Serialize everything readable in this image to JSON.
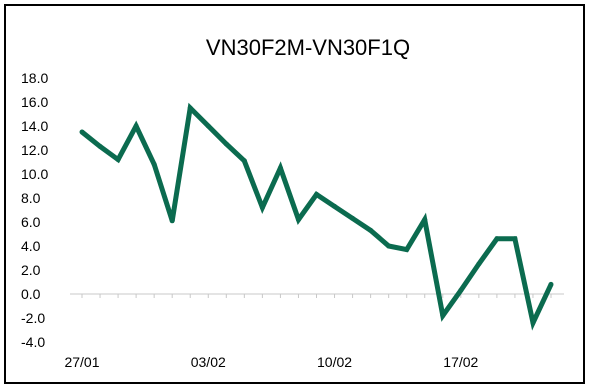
{
  "chart_data": {
    "type": "line",
    "title": "VN30F2M-VN30F1Q",
    "xlabel": "",
    "ylabel": "",
    "ylim": [
      -4.0,
      18.0
    ],
    "yticks": [
      "18.0",
      "16.0",
      "14.0",
      "12.0",
      "10.0",
      "8.0",
      "6.0",
      "4.0",
      "2.0",
      "0.0",
      "-2.0",
      "-4.0"
    ],
    "ytick_values": [
      18,
      16,
      14,
      12,
      10,
      8,
      6,
      4,
      2,
      0,
      -2,
      -4
    ],
    "xticks": [
      "27/01",
      "03/02",
      "10/02",
      "17/02"
    ],
    "xtick_index": [
      0,
      7,
      14,
      21
    ],
    "grid": false,
    "legend": "none",
    "series": [
      {
        "color": "#0b6b4f",
        "values": [
          13.5,
          12.3,
          11.2,
          14.0,
          10.8,
          6.1,
          15.5,
          14.0,
          12.5,
          11.1,
          7.2,
          10.5,
          6.2,
          8.3,
          7.3,
          6.3,
          5.3,
          4.0,
          3.7,
          6.2,
          -1.8,
          0.3,
          2.5,
          4.6,
          4.6,
          -2.4,
          0.8
        ]
      }
    ]
  }
}
